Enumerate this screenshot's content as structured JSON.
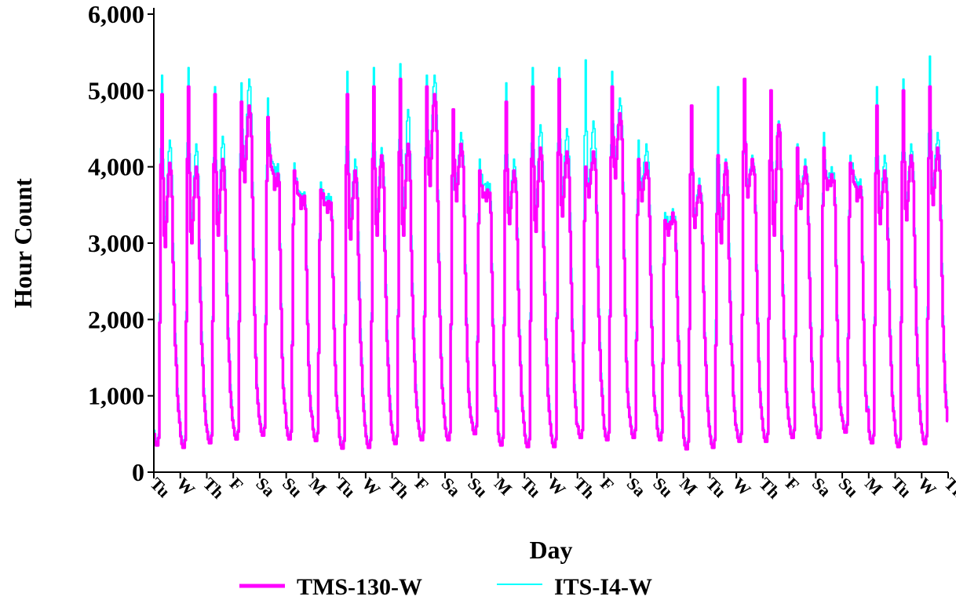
{
  "chart_data": {
    "type": "line",
    "title": "",
    "xlabel": "Day",
    "ylabel": "Hour Count",
    "ylim": [
      0,
      6000
    ],
    "yticks": [
      0,
      1000,
      2000,
      3000,
      4000,
      5000,
      6000
    ],
    "ytick_labels": [
      "0",
      "1,000",
      "2,000",
      "3,000",
      "4,000",
      "5,000",
      "6,000"
    ],
    "x_tick_labels": [
      "Tu",
      "W",
      "Th",
      "F",
      "Sa",
      "Su",
      "M",
      "Tu",
      "W",
      "Th",
      "F",
      "Sa",
      "Su",
      "M",
      "Tu",
      "W",
      "Th",
      "F",
      "Sa",
      "Su",
      "M",
      "Tu",
      "W",
      "Th",
      "F",
      "Sa",
      "Su",
      "M",
      "Tu",
      "W",
      "Th"
    ],
    "x_unit": "hour index",
    "xlim": [
      0,
      720
    ],
    "legend_position": "bottom",
    "grid": false,
    "series": [
      {
        "name": "TMS-130-W",
        "color": "#ff00ff",
        "daily": [
          {
            "min": 350,
            "peak1": 4950,
            "mid": 2950,
            "peak2": 4050,
            "night": 800
          },
          {
            "min": 320,
            "peak1": 5050,
            "mid": 3000,
            "peak2": 4000,
            "night": 800
          },
          {
            "min": 380,
            "peak1": 4950,
            "mid": 3100,
            "peak2": 4100,
            "night": 850
          },
          {
            "min": 430,
            "peak1": 4850,
            "mid": 3800,
            "peak2": 4800,
            "night": 900
          },
          {
            "min": 480,
            "peak1": 4650,
            "mid": 4000,
            "peak2": 3850,
            "night": 900
          },
          {
            "min": 430,
            "peak1": 3950,
            "mid": 3650,
            "peak2": 3600,
            "night": 800
          },
          {
            "min": 410,
            "peak1": 3700,
            "mid": 3500,
            "peak2": 3550,
            "night": 800
          },
          {
            "min": 310,
            "peak1": 4950,
            "mid": 3050,
            "peak2": 3950,
            "night": 800
          },
          {
            "min": 320,
            "peak1": 5050,
            "mid": 3100,
            "peak2": 4150,
            "night": 800
          },
          {
            "min": 370,
            "peak1": 5150,
            "mid": 3100,
            "peak2": 4300,
            "night": 850
          },
          {
            "min": 420,
            "peak1": 5050,
            "mid": 3750,
            "peak2": 4950,
            "night": 900
          },
          {
            "min": 420,
            "peak1": 4750,
            "mid": 3550,
            "peak2": 4300,
            "night": 850
          },
          {
            "min": 500,
            "peak1": 3950,
            "mid": 3600,
            "peak2": 3700,
            "night": 800
          },
          {
            "min": 350,
            "peak1": 4850,
            "mid": 3250,
            "peak2": 3950,
            "night": 800
          },
          {
            "min": 330,
            "peak1": 5050,
            "mid": 3150,
            "peak2": 4250,
            "night": 800
          },
          {
            "min": 330,
            "peak1": 5150,
            "mid": 3350,
            "peak2": 4200,
            "night": 850
          },
          {
            "min": 450,
            "peak1": 4000,
            "mid": 3600,
            "peak2": 4200,
            "night": 1000
          },
          {
            "min": 420,
            "peak1": 5050,
            "mid": 3850,
            "peak2": 4700,
            "night": 850
          },
          {
            "min": 450,
            "peak1": 4100,
            "mid": 3550,
            "peak2": 4050,
            "night": 800
          },
          {
            "min": 420,
            "peak1": 3300,
            "mid": 3100,
            "peak2": 3400,
            "night": 800
          },
          {
            "min": 300,
            "peak1": 4800,
            "mid": 3200,
            "peak2": 3750,
            "night": 800
          },
          {
            "min": 320,
            "peak1": 4150,
            "mid": 3000,
            "peak2": 4050,
            "night": 800
          },
          {
            "min": 400,
            "peak1": 5150,
            "mid": 3600,
            "peak2": 4100,
            "night": 850
          },
          {
            "min": 400,
            "peak1": 5000,
            "mid": 3100,
            "peak2": 4550,
            "night": 850
          },
          {
            "min": 450,
            "peak1": 4250,
            "mid": 3450,
            "peak2": 4000,
            "night": 850
          },
          {
            "min": 450,
            "peak1": 4250,
            "mid": 3700,
            "peak2": 3900,
            "night": 850
          },
          {
            "min": 520,
            "peak1": 4050,
            "mid": 3800,
            "peak2": 3700,
            "night": 800
          },
          {
            "min": 380,
            "peak1": 4800,
            "mid": 3250,
            "peak2": 3950,
            "night": 800
          },
          {
            "min": 330,
            "peak1": 5000,
            "mid": 3300,
            "peak2": 4150,
            "night": 800
          },
          {
            "min": 370,
            "peak1": 5050,
            "mid": 3500,
            "peak2": 4250,
            "night": 850
          }
        ]
      },
      {
        "name": "ITS-I4-W",
        "color": "#00ffff",
        "daily": [
          {
            "min": 400,
            "peak1": 5200,
            "mid": 3200,
            "peak2": 4350,
            "night": 900
          },
          {
            "min": 380,
            "peak1": 5300,
            "mid": 3250,
            "peak2": 4300,
            "night": 900
          },
          {
            "min": 420,
            "peak1": 5050,
            "mid": 3300,
            "peak2": 4400,
            "night": 950
          },
          {
            "min": 460,
            "peak1": 5100,
            "mid": 4000,
            "peak2": 5150,
            "night": 950
          },
          {
            "min": 520,
            "peak1": 4900,
            "mid": 4100,
            "peak2": 4000,
            "night": 950
          },
          {
            "min": 460,
            "peak1": 4050,
            "mid": 3700,
            "peak2": 3650,
            "night": 850
          },
          {
            "min": 440,
            "peak1": 3800,
            "mid": 3550,
            "peak2": 3650,
            "night": 850
          },
          {
            "min": 350,
            "peak1": 5250,
            "mid": 3350,
            "peak2": 4100,
            "night": 900
          },
          {
            "min": 360,
            "peak1": 5300,
            "mid": 3300,
            "peak2": 4250,
            "night": 900
          },
          {
            "min": 400,
            "peak1": 5350,
            "mid": 3300,
            "peak2": 4750,
            "night": 950
          },
          {
            "min": 450,
            "peak1": 5200,
            "mid": 3900,
            "peak2": 5200,
            "night": 950
          },
          {
            "min": 450,
            "peak1": 4500,
            "mid": 3700,
            "peak2": 4450,
            "night": 900
          },
          {
            "min": 540,
            "peak1": 4100,
            "mid": 3750,
            "peak2": 3800,
            "night": 850
          },
          {
            "min": 380,
            "peak1": 5100,
            "mid": 3400,
            "peak2": 4100,
            "night": 850
          },
          {
            "min": 360,
            "peak1": 5300,
            "mid": 3350,
            "peak2": 4550,
            "night": 900
          },
          {
            "min": 360,
            "peak1": 5300,
            "mid": 3600,
            "peak2": 4500,
            "night": 950
          },
          {
            "min": 450,
            "peak1": 5400,
            "mid": 3700,
            "peak2": 4600,
            "night": 1100
          },
          {
            "min": 450,
            "peak1": 5250,
            "mid": 4000,
            "peak2": 4900,
            "night": 900
          },
          {
            "min": 480,
            "peak1": 4350,
            "mid": 3700,
            "peak2": 4300,
            "night": 850
          },
          {
            "min": 460,
            "peak1": 3400,
            "mid": 3200,
            "peak2": 3450,
            "night": 850
          },
          {
            "min": 340,
            "peak1": 4800,
            "mid": 3300,
            "peak2": 3850,
            "night": 850
          },
          {
            "min": 350,
            "peak1": 5050,
            "mid": 3200,
            "peak2": 4100,
            "night": 850
          },
          {
            "min": 430,
            "peak1": 5100,
            "mid": 3700,
            "peak2": 4150,
            "night": 900
          },
          {
            "min": 430,
            "peak1": 5000,
            "mid": 3300,
            "peak2": 4600,
            "night": 900
          },
          {
            "min": 480,
            "peak1": 4300,
            "mid": 3550,
            "peak2": 4100,
            "night": 900
          },
          {
            "min": 480,
            "peak1": 4450,
            "mid": 3800,
            "peak2": 4000,
            "night": 900
          },
          {
            "min": 560,
            "peak1": 4150,
            "mid": 3900,
            "peak2": 3800,
            "night": 850
          },
          {
            "min": 410,
            "peak1": 5050,
            "mid": 3400,
            "peak2": 4150,
            "night": 850
          },
          {
            "min": 360,
            "peak1": 5150,
            "mid": 3400,
            "peak2": 4300,
            "night": 900
          },
          {
            "min": 400,
            "peak1": 5450,
            "mid": 3700,
            "peak2": 4450,
            "night": 950
          }
        ]
      }
    ]
  }
}
